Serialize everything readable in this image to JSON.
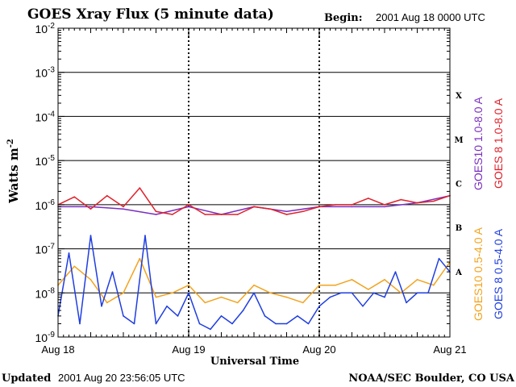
{
  "title": "GOES Xray Flux (5 minute data)",
  "begin_label": "Begin:",
  "begin_value": "2001 Aug 18 0000 UTC",
  "updated_label": "Updated",
  "updated_value": "2001 Aug 20 23:56:05 UTC",
  "credit": "NOAA/SEC Boulder, CO USA",
  "colors": {
    "goes10_long": "#7a2fbf",
    "goes8_long": "#e0202a",
    "goes10_short": "#f2a31d",
    "goes8_short": "#1f3ee0"
  },
  "chart_data": {
    "type": "line",
    "title": "GOES Xray Flux (5 minute data)",
    "xlabel": "Universal Time",
    "ylabel": "Watts m",
    "ylabel_sup": "-2",
    "y_scale": "log",
    "ylim": [
      1e-09,
      0.01
    ],
    "y_ticks": [
      {
        "base": "10",
        "exp": "-9",
        "value": 1e-09
      },
      {
        "base": "10",
        "exp": "-8",
        "value": 1e-08
      },
      {
        "base": "10",
        "exp": "-7",
        "value": 1e-07
      },
      {
        "base": "10",
        "exp": "-6",
        "value": 1e-06
      },
      {
        "base": "10",
        "exp": "-5",
        "value": 1e-05
      },
      {
        "base": "10",
        "exp": "-4",
        "value": 0.0001
      },
      {
        "base": "10",
        "exp": "-3",
        "value": 0.001
      },
      {
        "base": "10",
        "exp": "-2",
        "value": 0.01
      }
    ],
    "xlim": [
      "2001-08-18 00:00",
      "2001-08-21 00:00"
    ],
    "x_ticks": [
      "Aug 18",
      "Aug 19",
      "Aug 20",
      "Aug 21"
    ],
    "flare_classes": [
      {
        "label": "A",
        "value": 1e-08
      },
      {
        "label": "B",
        "value": 1e-07
      },
      {
        "label": "C",
        "value": 1e-06
      },
      {
        "label": "M",
        "value": 1e-05
      },
      {
        "label": "X",
        "value": 0.0001
      }
    ],
    "grid": true,
    "legend_placement": "right",
    "series": [
      {
        "name": "GOES10 1.0-8.0 A",
        "color": "#7a2fbf",
        "x": [
          "2001-08-18 00:00",
          "2001-08-18 06:00",
          "2001-08-18 12:00",
          "2001-08-18 18:00",
          "2001-08-19 00:00",
          "2001-08-19 06:00",
          "2001-08-19 12:00",
          "2001-08-19 18:00",
          "2001-08-20 00:00",
          "2001-08-20 06:00",
          "2001-08-20 12:00",
          "2001-08-20 18:00",
          "2001-08-21 00:00"
        ],
        "y": [
          9e-07,
          9e-07,
          8e-07,
          6e-07,
          9e-07,
          6e-07,
          9e-07,
          7e-07,
          9e-07,
          9e-07,
          9e-07,
          1.1e-06,
          1.6e-06
        ]
      },
      {
        "name": "GOES 8 1.0-8.0 A",
        "color": "#e0202a",
        "x": [
          "2001-08-18 00:00",
          "2001-08-18 03:00",
          "2001-08-18 06:00",
          "2001-08-18 09:00",
          "2001-08-18 12:00",
          "2001-08-18 15:00",
          "2001-08-18 18:00",
          "2001-08-18 21:00",
          "2001-08-19 00:00",
          "2001-08-19 03:00",
          "2001-08-19 06:00",
          "2001-08-19 09:00",
          "2001-08-19 12:00",
          "2001-08-19 15:00",
          "2001-08-19 18:00",
          "2001-08-19 21:00",
          "2001-08-20 00:00",
          "2001-08-20 03:00",
          "2001-08-20 06:00",
          "2001-08-20 09:00",
          "2001-08-20 12:00",
          "2001-08-20 15:00",
          "2001-08-20 18:00",
          "2001-08-20 21:00",
          "2001-08-21 00:00"
        ],
        "y": [
          1e-06,
          1.5e-06,
          8e-07,
          1.6e-06,
          9e-07,
          2.4e-06,
          7e-07,
          6e-07,
          1e-06,
          6e-07,
          6e-07,
          6e-07,
          9e-07,
          8e-07,
          6e-07,
          7e-07,
          9e-07,
          1e-06,
          1e-06,
          1.4e-06,
          1e-06,
          1.3e-06,
          1.1e-06,
          1.2e-06,
          1.6e-06
        ]
      },
      {
        "name": "GOES10 0.5-4.0 A",
        "color": "#f2a31d",
        "x": [
          "2001-08-18 00:00",
          "2001-08-18 03:00",
          "2001-08-18 06:00",
          "2001-08-18 09:00",
          "2001-08-18 12:00",
          "2001-08-18 15:00",
          "2001-08-18 18:00",
          "2001-08-18 21:00",
          "2001-08-19 00:00",
          "2001-08-19 03:00",
          "2001-08-19 06:00",
          "2001-08-19 09:00",
          "2001-08-19 12:00",
          "2001-08-19 15:00",
          "2001-08-19 18:00",
          "2001-08-19 21:00",
          "2001-08-20 00:00",
          "2001-08-20 03:00",
          "2001-08-20 06:00",
          "2001-08-20 09:00",
          "2001-08-20 12:00",
          "2001-08-20 15:00",
          "2001-08-20 18:00",
          "2001-08-20 21:00",
          "2001-08-21 00:00"
        ],
        "y": [
          1.5e-08,
          4e-08,
          2e-08,
          6e-09,
          1e-08,
          6e-08,
          8e-09,
          1e-08,
          1.5e-08,
          6e-09,
          8e-09,
          6e-09,
          1.5e-08,
          1e-08,
          8e-09,
          6e-09,
          1.5e-08,
          1.5e-08,
          2e-08,
          1.2e-08,
          2e-08,
          1e-08,
          2e-08,
          1.5e-08,
          5e-08
        ]
      },
      {
        "name": "GOES 8 0.5-4.0 A",
        "color": "#1f3ee0",
        "x": [
          "2001-08-18 00:00",
          "2001-08-18 02:00",
          "2001-08-18 04:00",
          "2001-08-18 06:00",
          "2001-08-18 08:00",
          "2001-08-18 10:00",
          "2001-08-18 12:00",
          "2001-08-18 14:00",
          "2001-08-18 16:00",
          "2001-08-18 18:00",
          "2001-08-18 20:00",
          "2001-08-18 22:00",
          "2001-08-19 00:00",
          "2001-08-19 02:00",
          "2001-08-19 04:00",
          "2001-08-19 06:00",
          "2001-08-19 08:00",
          "2001-08-19 10:00",
          "2001-08-19 12:00",
          "2001-08-19 14:00",
          "2001-08-19 16:00",
          "2001-08-19 18:00",
          "2001-08-19 20:00",
          "2001-08-19 22:00",
          "2001-08-20 00:00",
          "2001-08-20 02:00",
          "2001-08-20 04:00",
          "2001-08-20 06:00",
          "2001-08-20 08:00",
          "2001-08-20 10:00",
          "2001-08-20 12:00",
          "2001-08-20 14:00",
          "2001-08-20 16:00",
          "2001-08-20 18:00",
          "2001-08-20 20:00",
          "2001-08-20 22:00",
          "2001-08-21 00:00"
        ],
        "y": [
          3e-09,
          8e-08,
          2e-09,
          2e-07,
          5e-09,
          3e-08,
          3e-09,
          2e-09,
          2e-07,
          2e-09,
          5e-09,
          3e-09,
          1e-08,
          2e-09,
          1.5e-09,
          3e-09,
          2e-09,
          4e-09,
          1e-08,
          3e-09,
          2e-09,
          2e-09,
          3e-09,
          2e-09,
          5e-09,
          8e-09,
          1e-08,
          1e-08,
          5e-09,
          1e-08,
          8e-09,
          3e-08,
          6e-09,
          1e-08,
          1e-08,
          6e-08,
          3e-08
        ]
      }
    ]
  }
}
